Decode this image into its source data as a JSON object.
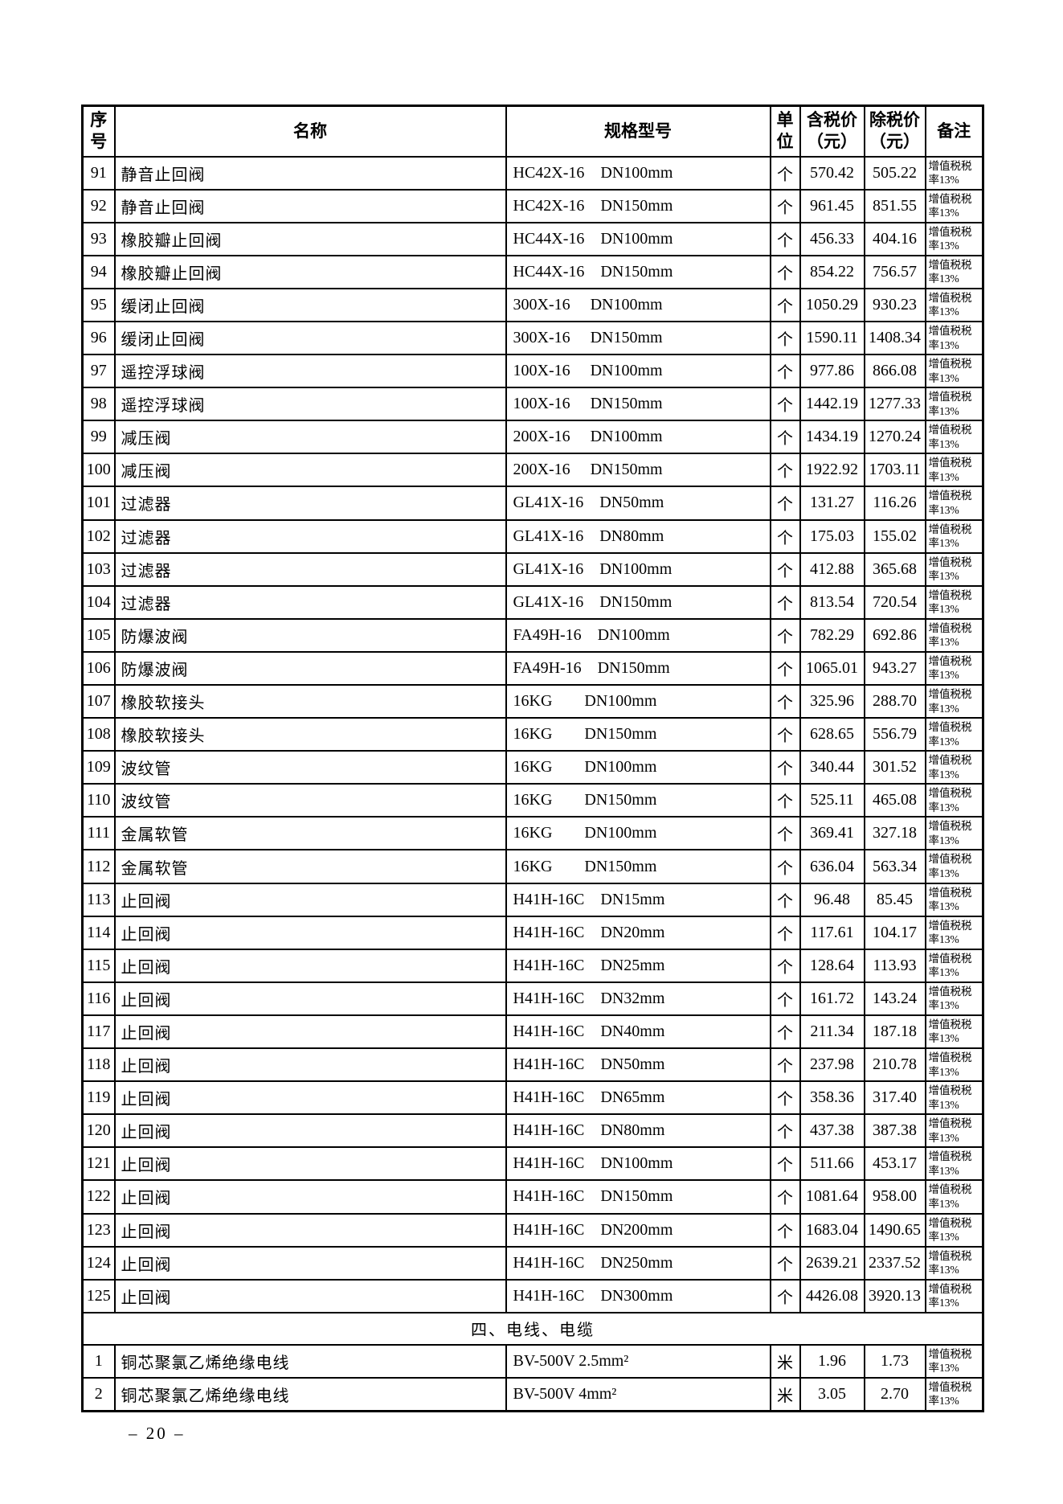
{
  "page": {
    "footer": "– 20 –"
  },
  "table": {
    "headers": [
      "序\n号",
      "名称",
      "规格型号",
      "单\n位",
      "含税价\n（元）",
      "除税价\n（元）",
      "备注"
    ],
    "section_title": "四、电线、电缆",
    "rows": [
      {
        "no": "91",
        "name": "静音止回阀",
        "spec": "HC42X-16    DN100mm",
        "unit": "个",
        "tax_incl": "570.42",
        "tax_excl": "505.22",
        "note": "增值税税率13%"
      },
      {
        "no": "92",
        "name": "静音止回阀",
        "spec": "HC42X-16    DN150mm",
        "unit": "个",
        "tax_incl": "961.45",
        "tax_excl": "851.55",
        "note": "增值税税率13%"
      },
      {
        "no": "93",
        "name": "橡胶瓣止回阀",
        "spec": "HC44X-16    DN100mm",
        "unit": "个",
        "tax_incl": "456.33",
        "tax_excl": "404.16",
        "note": "增值税税率13%"
      },
      {
        "no": "94",
        "name": "橡胶瓣止回阀",
        "spec": "HC44X-16    DN150mm",
        "unit": "个",
        "tax_incl": "854.22",
        "tax_excl": "756.57",
        "note": "增值税税率13%"
      },
      {
        "no": "95",
        "name": "缓闭止回阀",
        "spec": "300X-16     DN100mm",
        "unit": "个",
        "tax_incl": "1050.29",
        "tax_excl": "930.23",
        "note": "增值税税率13%"
      },
      {
        "no": "96",
        "name": "缓闭止回阀",
        "spec": "300X-16     DN150mm",
        "unit": "个",
        "tax_incl": "1590.11",
        "tax_excl": "1408.34",
        "note": "增值税税率13%"
      },
      {
        "no": "97",
        "name": "遥控浮球阀",
        "spec": "100X-16     DN100mm",
        "unit": "个",
        "tax_incl": "977.86",
        "tax_excl": "866.08",
        "note": "增值税税率13%"
      },
      {
        "no": "98",
        "name": "遥控浮球阀",
        "spec": "100X-16     DN150mm",
        "unit": "个",
        "tax_incl": "1442.19",
        "tax_excl": "1277.33",
        "note": "增值税税率13%"
      },
      {
        "no": "99",
        "name": "减压阀",
        "spec": "200X-16     DN100mm",
        "unit": "个",
        "tax_incl": "1434.19",
        "tax_excl": "1270.24",
        "note": "增值税税率13%"
      },
      {
        "no": "100",
        "name": "减压阀",
        "spec": "200X-16     DN150mm",
        "unit": "个",
        "tax_incl": "1922.92",
        "tax_excl": "1703.11",
        "note": "增值税税率13%"
      },
      {
        "no": "101",
        "name": "过滤器",
        "spec": "GL41X-16    DN50mm",
        "unit": "个",
        "tax_incl": "131.27",
        "tax_excl": "116.26",
        "note": "增值税税率13%"
      },
      {
        "no": "102",
        "name": "过滤器",
        "spec": "GL41X-16    DN80mm",
        "unit": "个",
        "tax_incl": "175.03",
        "tax_excl": "155.02",
        "note": "增值税税率13%"
      },
      {
        "no": "103",
        "name": "过滤器",
        "spec": "GL41X-16    DN100mm",
        "unit": "个",
        "tax_incl": "412.88",
        "tax_excl": "365.68",
        "note": "增值税税率13%"
      },
      {
        "no": "104",
        "name": "过滤器",
        "spec": "GL41X-16    DN150mm",
        "unit": "个",
        "tax_incl": "813.54",
        "tax_excl": "720.54",
        "note": "增值税税率13%"
      },
      {
        "no": "105",
        "name": "防爆波阀",
        "spec": "FA49H-16    DN100mm",
        "unit": "个",
        "tax_incl": "782.29",
        "tax_excl": "692.86",
        "note": "增值税税率13%"
      },
      {
        "no": "106",
        "name": "防爆波阀",
        "spec": "FA49H-16    DN150mm",
        "unit": "个",
        "tax_incl": "1065.01",
        "tax_excl": "943.27",
        "note": "增值税税率13%"
      },
      {
        "no": "107",
        "name": "橡胶软接头",
        "spec": "16KG        DN100mm",
        "unit": "个",
        "tax_incl": "325.96",
        "tax_excl": "288.70",
        "note": "增值税税率13%"
      },
      {
        "no": "108",
        "name": "橡胶软接头",
        "spec": "16KG        DN150mm",
        "unit": "个",
        "tax_incl": "628.65",
        "tax_excl": "556.79",
        "note": "增值税税率13%"
      },
      {
        "no": "109",
        "name": "波纹管",
        "spec": "16KG        DN100mm",
        "unit": "个",
        "tax_incl": "340.44",
        "tax_excl": "301.52",
        "note": "增值税税率13%"
      },
      {
        "no": "110",
        "name": "波纹管",
        "spec": "16KG        DN150mm",
        "unit": "个",
        "tax_incl": "525.11",
        "tax_excl": "465.08",
        "note": "增值税税率13%"
      },
      {
        "no": "111",
        "name": "金属软管",
        "spec": "16KG        DN100mm",
        "unit": "个",
        "tax_incl": "369.41",
        "tax_excl": "327.18",
        "note": "增值税税率13%"
      },
      {
        "no": "112",
        "name": "金属软管",
        "spec": "16KG        DN150mm",
        "unit": "个",
        "tax_incl": "636.04",
        "tax_excl": "563.34",
        "note": "增值税税率13%"
      },
      {
        "no": "113",
        "name": "止回阀",
        "spec": "H41H-16C    DN15mm",
        "unit": "个",
        "tax_incl": "96.48",
        "tax_excl": "85.45",
        "note": "增值税税率13%"
      },
      {
        "no": "114",
        "name": "止回阀",
        "spec": "H41H-16C    DN20mm",
        "unit": "个",
        "tax_incl": "117.61",
        "tax_excl": "104.17",
        "note": "增值税税率13%"
      },
      {
        "no": "115",
        "name": "止回阀",
        "spec": "H41H-16C    DN25mm",
        "unit": "个",
        "tax_incl": "128.64",
        "tax_excl": "113.93",
        "note": "增值税税率13%"
      },
      {
        "no": "116",
        "name": "止回阀",
        "spec": "H41H-16C    DN32mm",
        "unit": "个",
        "tax_incl": "161.72",
        "tax_excl": "143.24",
        "note": "增值税税率13%"
      },
      {
        "no": "117",
        "name": "止回阀",
        "spec": "H41H-16C    DN40mm",
        "unit": "个",
        "tax_incl": "211.34",
        "tax_excl": "187.18",
        "note": "增值税税率13%"
      },
      {
        "no": "118",
        "name": "止回阀",
        "spec": "H41H-16C    DN50mm",
        "unit": "个",
        "tax_incl": "237.98",
        "tax_excl": "210.78",
        "note": "增值税税率13%"
      },
      {
        "no": "119",
        "name": "止回阀",
        "spec": "H41H-16C    DN65mm",
        "unit": "个",
        "tax_incl": "358.36",
        "tax_excl": "317.40",
        "note": "增值税税率13%"
      },
      {
        "no": "120",
        "name": "止回阀",
        "spec": "H41H-16C    DN80mm",
        "unit": "个",
        "tax_incl": "437.38",
        "tax_excl": "387.38",
        "note": "增值税税率13%"
      },
      {
        "no": "121",
        "name": "止回阀",
        "spec": "H41H-16C    DN100mm",
        "unit": "个",
        "tax_incl": "511.66",
        "tax_excl": "453.17",
        "note": "增值税税率13%"
      },
      {
        "no": "122",
        "name": "止回阀",
        "spec": "H41H-16C    DN150mm",
        "unit": "个",
        "tax_incl": "1081.64",
        "tax_excl": "958.00",
        "note": "增值税税率13%"
      },
      {
        "no": "123",
        "name": "止回阀",
        "spec": "H41H-16C    DN200mm",
        "unit": "个",
        "tax_incl": "1683.04",
        "tax_excl": "1490.65",
        "note": "增值税税率13%"
      },
      {
        "no": "124",
        "name": "止回阀",
        "spec": "H41H-16C    DN250mm",
        "unit": "个",
        "tax_incl": "2639.21",
        "tax_excl": "2337.52",
        "note": "增值税税率13%"
      },
      {
        "no": "125",
        "name": "止回阀",
        "spec": "H41H-16C    DN300mm",
        "unit": "个",
        "tax_incl": "4426.08",
        "tax_excl": "3920.13",
        "note": "增值税税率13%"
      }
    ],
    "wire_rows": [
      {
        "no": "1",
        "name": "铜芯聚氯乙烯绝缘电线",
        "spec": "BV-500V 2.5mm²",
        "unit": "米",
        "tax_incl": "1.96",
        "tax_excl": "1.73",
        "note": "增值税税率13%"
      },
      {
        "no": "2",
        "name": "铜芯聚氯乙烯绝缘电线",
        "spec": "BV-500V 4mm²",
        "unit": "米",
        "tax_incl": "3.05",
        "tax_excl": "2.70",
        "note": "增值税税率13%"
      }
    ]
  }
}
